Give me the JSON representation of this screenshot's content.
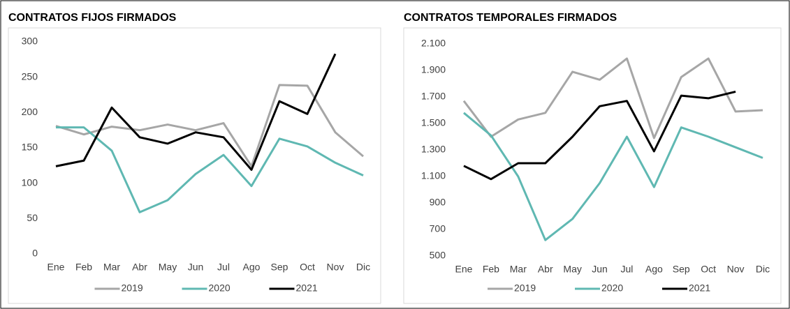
{
  "chart_data": [
    {
      "type": "line",
      "title": "CONTRATOS FIJOS FIRMADOS",
      "categories": [
        "Ene",
        "Feb",
        "Mar",
        "Abr",
        "May",
        "Jun",
        "Jul",
        "Ago",
        "Sep",
        "Oct",
        "Nov",
        "Dic"
      ],
      "series": [
        {
          "name": "2019",
          "color": "#a6a6a6",
          "values": [
            181,
            169,
            180,
            175,
            183,
            175,
            185,
            124,
            239,
            238,
            172,
            138
          ]
        },
        {
          "name": "2020",
          "color": "#5fb8b2",
          "values": [
            179,
            179,
            146,
            59,
            76,
            113,
            140,
            96,
            163,
            152,
            129,
            111
          ]
        },
        {
          "name": "2021",
          "color": "#000000",
          "values": [
            124,
            132,
            207,
            165,
            156,
            172,
            165,
            119,
            216,
            198,
            283,
            null
          ]
        }
      ],
      "ylim": [
        0,
        300
      ],
      "yticks": [
        0,
        50,
        100,
        150,
        200,
        250,
        300
      ],
      "grid": false,
      "legend": "bottom"
    },
    {
      "type": "line",
      "title": "CONTRATOS TEMPORALES FIRMADOS",
      "categories": [
        "Ene",
        "Feb",
        "Mar",
        "Abr",
        "May",
        "Jun",
        "Jul",
        "Ago",
        "Sep",
        "Oct",
        "Nov",
        "Dic"
      ],
      "series": [
        {
          "name": "2019",
          "color": "#a6a6a6",
          "values": [
            1670,
            1400,
            1530,
            1580,
            1890,
            1830,
            1990,
            1390,
            1850,
            1990,
            1590,
            1600
          ]
        },
        {
          "name": "2020",
          "color": "#5fb8b2",
          "values": [
            1580,
            1410,
            1100,
            620,
            780,
            1050,
            1400,
            1020,
            1470,
            1400,
            1320,
            1240
          ]
        },
        {
          "name": "2021",
          "color": "#000000",
          "values": [
            1180,
            1080,
            1200,
            1200,
            1400,
            1630,
            1670,
            1290,
            1710,
            1690,
            1740,
            null
          ]
        }
      ],
      "ylim": [
        500,
        2100
      ],
      "yticks": [
        500,
        700,
        900,
        {
          "value": 1100,
          "label": "1.100"
        },
        {
          "value": 1300,
          "label": "1.300"
        },
        {
          "value": 1500,
          "label": "1.500"
        },
        {
          "value": 1700,
          "label": "1.700"
        },
        {
          "value": 1900,
          "label": "1.900"
        },
        {
          "value": 2100,
          "label": "2.100"
        }
      ],
      "grid": false,
      "legend": "bottom"
    }
  ]
}
